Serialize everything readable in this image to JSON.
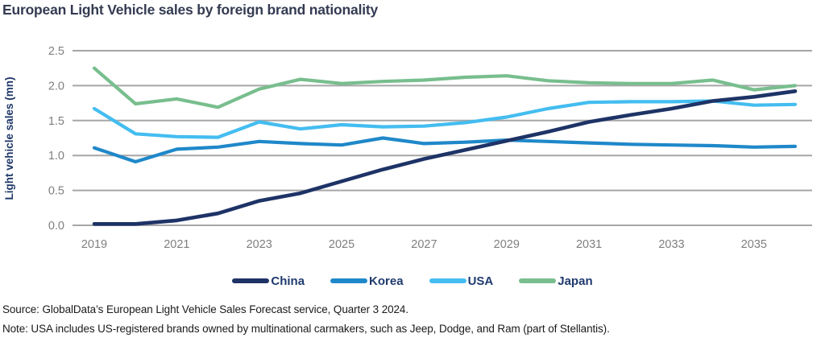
{
  "title": "European Light Vehicle sales by foreign brand nationality",
  "source_line": "Source: GlobalData’s European Light Vehicle Sales Forecast service, Quarter 3 2024.",
  "note_line": "Note: USA includes US-registered brands owned by multinational carmakers, such as Jeep, Dodge, and Ram (part of Stellantis).",
  "colors": {
    "title_text": "#343b52",
    "axis_text": "#7f7f7f",
    "gridline": "#a6a6a6",
    "legend_text": "#1f3a6e"
  },
  "chart_data": {
    "type": "line",
    "title": "European Light Vehicle sales by foreign brand nationality",
    "xlabel": "",
    "ylabel": "Light vehicle sales (mn)",
    "ylim": [
      0,
      2.5
    ],
    "y_ticks": [
      "0.0",
      "0.5",
      "1.0",
      "1.5",
      "2.0",
      "2.5"
    ],
    "grid": "horizontal",
    "legend_position": "bottom",
    "x": [
      2019,
      2020,
      2021,
      2022,
      2023,
      2024,
      2025,
      2026,
      2027,
      2028,
      2029,
      2030,
      2031,
      2032,
      2033,
      2034,
      2035,
      2036
    ],
    "x_tick_labels": [
      "2019",
      "2021",
      "2023",
      "2025",
      "2027",
      "2029",
      "2031",
      "2033",
      "2035"
    ],
    "series": [
      {
        "name": "China",
        "color": "#1e3366",
        "values": [
          0.02,
          0.02,
          0.07,
          0.17,
          0.35,
          0.46,
          0.63,
          0.8,
          0.95,
          1.08,
          1.21,
          1.34,
          1.48,
          1.58,
          1.67,
          1.78,
          1.84,
          1.92
        ]
      },
      {
        "name": "Korea",
        "color": "#1f88c9",
        "values": [
          1.11,
          0.91,
          1.09,
          1.12,
          1.2,
          1.17,
          1.15,
          1.25,
          1.17,
          1.19,
          1.22,
          1.2,
          1.18,
          1.16,
          1.15,
          1.14,
          1.12,
          1.13
        ]
      },
      {
        "name": "USA",
        "color": "#44bdf0",
        "values": [
          1.67,
          1.31,
          1.27,
          1.26,
          1.48,
          1.38,
          1.44,
          1.41,
          1.42,
          1.47,
          1.55,
          1.67,
          1.76,
          1.77,
          1.77,
          1.78,
          1.72,
          1.73
        ]
      },
      {
        "name": "Japan",
        "color": "#78be8e",
        "values": [
          2.25,
          1.74,
          1.81,
          1.69,
          1.95,
          2.09,
          2.03,
          2.06,
          2.08,
          2.12,
          2.14,
          2.07,
          2.04,
          2.03,
          2.03,
          2.08,
          1.94,
          2.0
        ]
      }
    ]
  }
}
